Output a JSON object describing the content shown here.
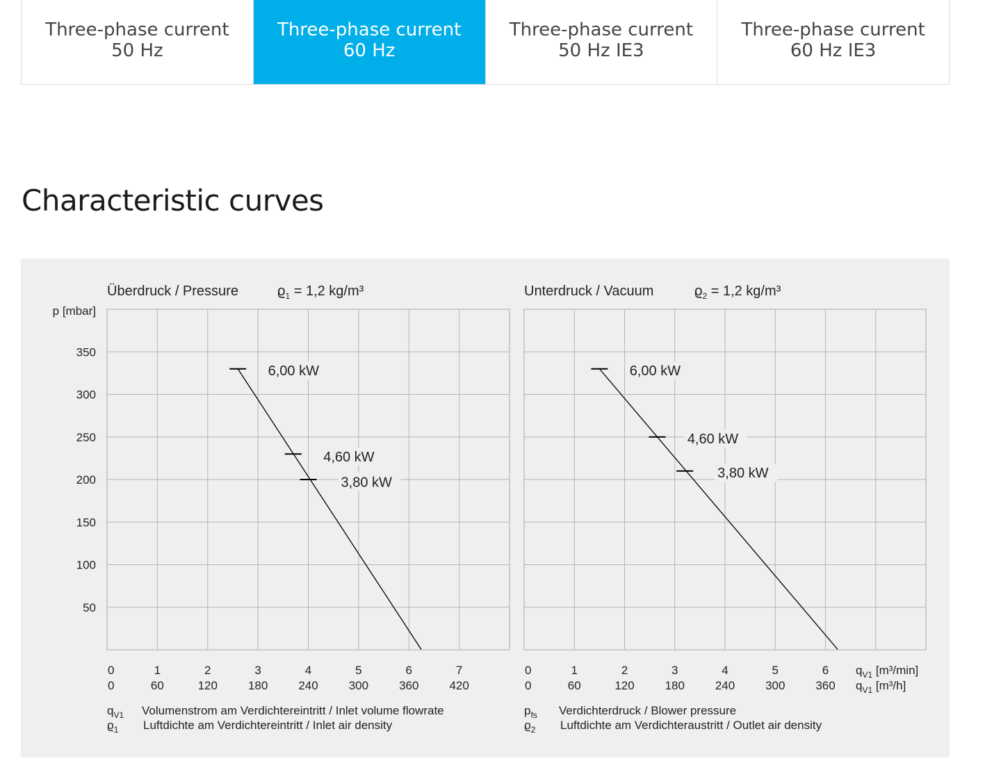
{
  "tabs": [
    {
      "line1": "Three-phase current",
      "line2": "50 Hz",
      "active": false
    },
    {
      "line1": "Three-phase current",
      "line2": "60 Hz",
      "active": true
    },
    {
      "line1": "Three-phase current",
      "line2": "50 Hz IE3",
      "active": false
    },
    {
      "line1": "Three-phase current",
      "line2": "60 Hz IE3",
      "active": false
    }
  ],
  "section_title": "Characteristic curves",
  "colors": {
    "active_tab": "#00aee9",
    "chart_background": "#efefef",
    "grid": "#b5b5b5",
    "curve": "#000000"
  },
  "chart_data": [
    {
      "type": "line",
      "title": "Überdruck / Pressure",
      "density_symbol": "ϱ",
      "density_sub": "1",
      "density_value": " = 1,2 kg/m³",
      "ylabel": "p [mbar]",
      "ylim": [
        0,
        400
      ],
      "yticks": [
        50,
        100,
        150,
        200,
        250,
        300,
        350
      ],
      "xlim": [
        0,
        8
      ],
      "xticks_min": [
        "0",
        "1",
        "2",
        "3",
        "4",
        "5",
        "6",
        "7"
      ],
      "xticks_h": [
        "0",
        "60",
        "120",
        "180",
        "240",
        "300",
        "360",
        "420"
      ],
      "grid": true,
      "series": [
        {
          "x": [
            2.6,
            6.25
          ],
          "y": [
            330,
            0
          ]
        }
      ],
      "markers": [
        {
          "x": 2.6,
          "y": 330,
          "label": "6,00 kW",
          "label_x": 3.2,
          "label_y": 328
        },
        {
          "x": 3.7,
          "y": 230,
          "label": "4,60 kW",
          "label_x": 4.3,
          "label_y": 227
        },
        {
          "x": 4.0,
          "y": 200,
          "label": "3,80 kW",
          "label_x": 4.65,
          "label_y": 197
        }
      ],
      "legend": [
        {
          "sym": "q",
          "sub": "V1",
          "text": "Volumenstrom am Verdichtereintritt / Inlet volume flowrate"
        },
        {
          "sym": "ϱ",
          "sub": "1",
          "text": "Luftdichte am Verdichtereintritt / Inlet air density"
        }
      ]
    },
    {
      "type": "line",
      "title": "Unterdruck / Vacuum",
      "density_symbol": "ϱ",
      "density_sub": "2",
      "density_value": " = 1,2 kg/m³",
      "ylim": [
        0,
        400
      ],
      "xlim": [
        0,
        8
      ],
      "xticks_min": [
        "0",
        "1",
        "2",
        "3",
        "4",
        "5",
        "6"
      ],
      "xticks_h": [
        "0",
        "60",
        "120",
        "180",
        "240",
        "300",
        "360"
      ],
      "x_unit_min": "[m³/min]",
      "x_unit_h": "[m³/h]",
      "x_unit_sym": "q",
      "x_unit_sub": "V1",
      "grid": true,
      "series": [
        {
          "x": [
            1.5,
            6.25
          ],
          "y": [
            330,
            0
          ]
        }
      ],
      "markers": [
        {
          "x": 2.65,
          "y": 250,
          "label": "4,60 kW",
          "label_x": 3.25,
          "label_y": 248
        },
        {
          "x": 3.2,
          "y": 210,
          "label": "3,80 kW",
          "label_x": 3.85,
          "label_y": 208
        },
        {
          "x": 1.5,
          "y": 330,
          "label": "6,00 kW",
          "label_x": 2.1,
          "label_y": 328
        }
      ],
      "legend": [
        {
          "sym": "p",
          "sub": "fs",
          "text": "Verdichterdruck / Blower pressure"
        },
        {
          "sym": "ϱ",
          "sub": "2",
          "text": "Luftdichte am Verdichteraustritt / Outlet air density"
        }
      ]
    }
  ]
}
